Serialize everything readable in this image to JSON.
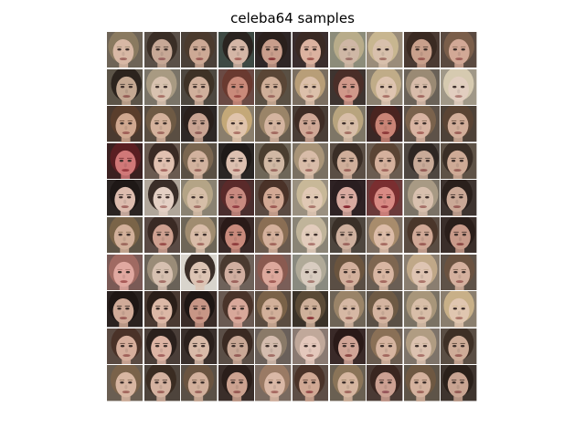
{
  "figure": {
    "title": "celeba64 samples",
    "rows": 10,
    "cols": 10
  },
  "colors": {
    "background": "#ffffff",
    "grid_gap": "#ffffff"
  },
  "tiles": [
    {
      "bg": "#6e6457",
      "hair": "#8a7a60",
      "skin": "#d8b8a5",
      "lip": "#a06a62"
    },
    {
      "bg": "#5a5048",
      "hair": "#3a2e26",
      "skin": "#c7a896",
      "lip": "#9a6460"
    },
    {
      "bg": "#4a4038",
      "hair": "#4b3b2e",
      "skin": "#cda995",
      "lip": "#9e5e58"
    },
    {
      "bg": "#3e4a44",
      "hair": "#2a2420",
      "skin": "#d4b6a6",
      "lip": "#a8665e"
    },
    {
      "bg": "#2e2626",
      "hair": "#2a201c",
      "skin": "#c99e8c",
      "lip": "#8a3a3a"
    },
    {
      "bg": "#3a2e2e",
      "hair": "#3a2a24",
      "skin": "#dcb2a0",
      "lip": "#a25a52"
    },
    {
      "bg": "#8c8c7a",
      "hair": "#b8ac8a",
      "skin": "#cfb7a5",
      "lip": "#9c7068"
    },
    {
      "bg": "#9a8c7a",
      "hair": "#c8b690",
      "skin": "#d8c0ac",
      "lip": "#a47468"
    },
    {
      "bg": "#4a3a32",
      "hair": "#3a2a22",
      "skin": "#c9a08c",
      "lip": "#9a5a52"
    },
    {
      "bg": "#5a4a40",
      "hair": "#7a5e4a",
      "skin": "#d2a896",
      "lip": "#a0605a"
    },
    {
      "bg": "#5c5448",
      "hair": "#2c241e",
      "skin": "#c4a892",
      "lip": "#965e56"
    },
    {
      "bg": "#7a7468",
      "hair": "#a89a82",
      "skin": "#d8c2b0",
      "lip": "#a87268"
    },
    {
      "bg": "#4e4840",
      "hair": "#3e3226",
      "skin": "#d0b09c",
      "lip": "#9e645c"
    },
    {
      "bg": "#6a4a44",
      "hair": "#6a3a30",
      "skin": "#c98a7a",
      "lip": "#9a4a44"
    },
    {
      "bg": "#5a5044",
      "hair": "#5a4636",
      "skin": "#cfae98",
      "lip": "#9e6a60"
    },
    {
      "bg": "#7a6e60",
      "hair": "#b89e78",
      "skin": "#dcc0aa",
      "lip": "#a87266"
    },
    {
      "bg": "#3e3430",
      "hair": "#4a2e28",
      "skin": "#d0988a",
      "lip": "#a0464a"
    },
    {
      "bg": "#8a8070",
      "hair": "#c0ac88",
      "skin": "#dec4b0",
      "lip": "#aa7268"
    },
    {
      "bg": "#6a6258",
      "hair": "#9a8a74",
      "skin": "#d8bcaa",
      "lip": "#a26a62"
    },
    {
      "bg": "#a09888",
      "hair": "#d6cab0",
      "skin": "#e2cec0",
      "lip": "#b08078"
    },
    {
      "bg": "#4a3a30",
      "hair": "#5a3e2c",
      "skin": "#d0a890",
      "lip": "#a06058"
    },
    {
      "bg": "#5a4e42",
      "hair": "#6e5a44",
      "skin": "#d4b29c",
      "lip": "#a06a60"
    },
    {
      "bg": "#2e2826",
      "hair": "#2a201c",
      "skin": "#c9a493",
      "lip": "#94605a"
    },
    {
      "bg": "#8a7e6c",
      "hair": "#c4a878",
      "skin": "#e0c4ac",
      "lip": "#ac7468"
    },
    {
      "bg": "#6a5e50",
      "hair": "#9a8468",
      "skin": "#d4b4a0",
      "lip": "#a26a60"
    },
    {
      "bg": "#4a3e36",
      "hair": "#3e2c24",
      "skin": "#cfa896",
      "lip": "#9c5e56"
    },
    {
      "bg": "#7e7666",
      "hair": "#b8a47e",
      "skin": "#d8bea8",
      "lip": "#a47064"
    },
    {
      "bg": "#3a2826",
      "hair": "#4a2420",
      "skin": "#c98476",
      "lip": "#8e3a3a"
    },
    {
      "bg": "#5e5248",
      "hair": "#7a624c",
      "skin": "#d8b4a2",
      "lip": "#a8665e"
    },
    {
      "bg": "#4e4238",
      "hair": "#5a4434",
      "skin": "#d2ae9a",
      "lip": "#9e625a"
    },
    {
      "bg": "#3a2020",
      "hair": "#5a1e22",
      "skin": "#d07878",
      "lip": "#9a3a40"
    },
    {
      "bg": "#6a5a50",
      "hair": "#3a2a24",
      "skin": "#e0c0b0",
      "lip": "#a86a64"
    },
    {
      "bg": "#5a5044",
      "hair": "#7a6650",
      "skin": "#d2b29e",
      "lip": "#9e6860"
    },
    {
      "bg": "#2a2624",
      "hair": "#1e1a18",
      "skin": "#dcc0b0",
      "lip": "#a86c66"
    },
    {
      "bg": "#6e6658",
      "hair": "#4a3e30",
      "skin": "#d0b8a4",
      "lip": "#9c6a62"
    },
    {
      "bg": "#7a7062",
      "hair": "#a89478",
      "skin": "#d8bca8",
      "lip": "#a66e66"
    },
    {
      "bg": "#5a4e44",
      "hair": "#3a2e26",
      "skin": "#cfae9a",
      "lip": "#9e645c"
    },
    {
      "bg": "#6a5c50",
      "hair": "#5a4434",
      "skin": "#d4b09c",
      "lip": "#a2665e"
    },
    {
      "bg": "#4e4640",
      "hair": "#2e2622",
      "skin": "#c8aa98",
      "lip": "#965e58"
    },
    {
      "bg": "#5e5246",
      "hair": "#3a2e26",
      "skin": "#ceaa96",
      "lip": "#9a625a"
    },
    {
      "bg": "#2a2422",
      "hair": "#1e1816",
      "skin": "#dcbcae",
      "lip": "#a46862"
    },
    {
      "bg": "#b0a69a",
      "hair": "#3a2e28",
      "skin": "#e4d0c4",
      "lip": "#b28078"
    },
    {
      "bg": "#8a8272",
      "hair": "#b4a486",
      "skin": "#d6bea8",
      "lip": "#a27066"
    },
    {
      "bg": "#4a2e2e",
      "hair": "#5a2a2a",
      "skin": "#c88a80",
      "lip": "#943e44"
    },
    {
      "bg": "#5a4a42",
      "hair": "#4a3228",
      "skin": "#d2a894",
      "lip": "#9e5a54"
    },
    {
      "bg": "#9a9080",
      "hair": "#c8b898",
      "skin": "#e0c8b4",
      "lip": "#aa766c"
    },
    {
      "bg": "#2e2224",
      "hair": "#2a1e20",
      "skin": "#d8aaa0",
      "lip": "#8a2a34"
    },
    {
      "bg": "#6a3a3a",
      "hair": "#7a2e30",
      "skin": "#d88a84",
      "lip": "#963a40"
    },
    {
      "bg": "#7a7266",
      "hair": "#a89a84",
      "skin": "#d8c0ae",
      "lip": "#a67068"
    },
    {
      "bg": "#3e3430",
      "hair": "#2a201c",
      "skin": "#caa896",
      "lip": "#9a5e58"
    },
    {
      "bg": "#5e5446",
      "hair": "#7a6448",
      "skin": "#d2b09a",
      "lip": "#9e6a5e"
    },
    {
      "bg": "#5a4a44",
      "hair": "#3a2a24",
      "skin": "#cea090",
      "lip": "#9a4e4a"
    },
    {
      "bg": "#6e6658",
      "hair": "#a08c70",
      "skin": "#d8bca8",
      "lip": "#a46c62"
    },
    {
      "bg": "#3a2a28",
      "hair": "#2a1a18",
      "skin": "#c88a7c",
      "lip": "#903e3e"
    },
    {
      "bg": "#6a5a4e",
      "hair": "#8a6e54",
      "skin": "#d4b09c",
      "lip": "#a2665c"
    },
    {
      "bg": "#8a8476",
      "hair": "#c0b49a",
      "skin": "#e2ccbc",
      "lip": "#ac7870"
    },
    {
      "bg": "#4e463e",
      "hair": "#3a3028",
      "skin": "#ceb09e",
      "lip": "#9c665e"
    },
    {
      "bg": "#7a6c60",
      "hair": "#a88c6c",
      "skin": "#dcbca8",
      "lip": "#a66c62"
    },
    {
      "bg": "#5a4c42",
      "hair": "#4a362a",
      "skin": "#d0a896",
      "lip": "#9c5e56"
    },
    {
      "bg": "#3a2e2a",
      "hair": "#2a1e1a",
      "skin": "#c89a8a",
      "lip": "#8e4a46"
    },
    {
      "bg": "#7a5a56",
      "hair": "#a06a62",
      "skin": "#e0a8a0",
      "lip": "#a85a58"
    },
    {
      "bg": "#6a6258",
      "hair": "#9a8c78",
      "skin": "#d6c0b0",
      "lip": "#a47068"
    },
    {
      "bg": "#d8d4cc",
      "hair": "#3a2e28",
      "skin": "#dcc4b4",
      "lip": "#a87068"
    },
    {
      "bg": "#6e625a",
      "hair": "#4a3a30",
      "skin": "#d0aea0",
      "lip": "#9c625c"
    },
    {
      "bg": "#7a5e58",
      "hair": "#8a5a50",
      "skin": "#dca89c",
      "lip": "#a45e58"
    },
    {
      "bg": "#8a8a80",
      "hair": "#b0aa98",
      "skin": "#d8ccc0",
      "lip": "#a87c74"
    },
    {
      "bg": "#5a4e44",
      "hair": "#6a543e",
      "skin": "#d2b09c",
      "lip": "#9e665e"
    },
    {
      "bg": "#6a5e54",
      "hair": "#7e6650",
      "skin": "#d8b6a2",
      "lip": "#a46a60"
    },
    {
      "bg": "#8a7e70",
      "hair": "#c0a888",
      "skin": "#dec4b2",
      "lip": "#aa746a"
    },
    {
      "bg": "#5e5248",
      "hair": "#6a5240",
      "skin": "#d4b09e",
      "lip": "#a2665e"
    },
    {
      "bg": "#2a2220",
      "hair": "#1e1614",
      "skin": "#d0aa98",
      "lip": "#9c5e58"
    },
    {
      "bg": "#4a3a32",
      "hair": "#2a1e18",
      "skin": "#dcb8a6",
      "lip": "#a66660"
    },
    {
      "bg": "#3a2c28",
      "hair": "#1e1614",
      "skin": "#c89686",
      "lip": "#94544e"
    },
    {
      "bg": "#6a5a52",
      "hair": "#4a342a",
      "skin": "#d8a89a",
      "lip": "#a25c56"
    },
    {
      "bg": "#5a4c40",
      "hair": "#7a6248",
      "skin": "#d2b09a",
      "lip": "#9e665c"
    },
    {
      "bg": "#3a3228",
      "hair": "#5a4a36",
      "skin": "#cfb09a",
      "lip": "#8e3a3c"
    },
    {
      "bg": "#6e6456",
      "hair": "#9a8468",
      "skin": "#d6b8a4",
      "lip": "#a26a60"
    },
    {
      "bg": "#5a5046",
      "hair": "#6e5a44",
      "skin": "#d4b4a0",
      "lip": "#a06a60"
    },
    {
      "bg": "#7a7264",
      "hair": "#a8967a",
      "skin": "#d8bea8",
      "lip": "#a47066"
    },
    {
      "bg": "#8a7e6e",
      "hair": "#c8b088",
      "skin": "#e0c6b0",
      "lip": "#ac766a"
    },
    {
      "bg": "#5a4a42",
      "hair": "#4a3228",
      "skin": "#d6ae9c",
      "lip": "#a0625a"
    },
    {
      "bg": "#4a3e38",
      "hair": "#2a201c",
      "skin": "#dcb4a4",
      "lip": "#a46460"
    },
    {
      "bg": "#3a302c",
      "hair": "#2a201c",
      "skin": "#d8baa8",
      "lip": "#a46a62"
    },
    {
      "bg": "#5a4e46",
      "hair": "#3a2a22",
      "skin": "#c9a896",
      "lip": "#965e58"
    },
    {
      "bg": "#6a605a",
      "hair": "#8a7a68",
      "skin": "#d4bcae",
      "lip": "#a26e66"
    },
    {
      "bg": "#8a7a72",
      "hair": "#c0a89a",
      "skin": "#e4c8bc",
      "lip": "#ac7a72"
    },
    {
      "bg": "#3a2a28",
      "hair": "#2a1a18",
      "skin": "#d0a496",
      "lip": "#8e4a46"
    },
    {
      "bg": "#6a5c50",
      "hair": "#8a7056",
      "skin": "#d6b4a0",
      "lip": "#a2685e"
    },
    {
      "bg": "#7e746a",
      "hair": "#b09c82",
      "skin": "#dcc2b0",
      "lip": "#a8726a"
    },
    {
      "bg": "#5a4e44",
      "hair": "#3e3026",
      "skin": "#ceac98",
      "lip": "#9c625a"
    },
    {
      "bg": "#6a5e52",
      "hair": "#7a624a",
      "skin": "#d8b6a2",
      "lip": "#a2685e"
    },
    {
      "bg": "#4e443c",
      "hair": "#3a2c22",
      "skin": "#d4b2a0",
      "lip": "#a0645c"
    },
    {
      "bg": "#5a5046",
      "hair": "#6a5440",
      "skin": "#d2b09c",
      "lip": "#9e665e"
    },
    {
      "bg": "#3a2e2a",
      "hair": "#2a1e1a",
      "skin": "#cca290",
      "lip": "#985a54"
    },
    {
      "bg": "#7a6a60",
      "hair": "#9a7a64",
      "skin": "#dab8a6",
      "lip": "#a66a62"
    },
    {
      "bg": "#5e4e46",
      "hair": "#4a3228",
      "skin": "#d0a894",
      "lip": "#9a4e4c"
    },
    {
      "bg": "#6a6052",
      "hair": "#8a7458",
      "skin": "#d6b6a0",
      "lip": "#a2695f"
    },
    {
      "bg": "#4a3a34",
      "hair": "#3a2620",
      "skin": "#cca092",
      "lip": "#96565a"
    },
    {
      "bg": "#5e5448",
      "hair": "#6e5842",
      "skin": "#d4b29e",
      "lip": "#a0665c"
    },
    {
      "bg": "#3e342e",
      "hair": "#2a201a",
      "skin": "#c8a492",
      "lip": "#965c56"
    }
  ]
}
